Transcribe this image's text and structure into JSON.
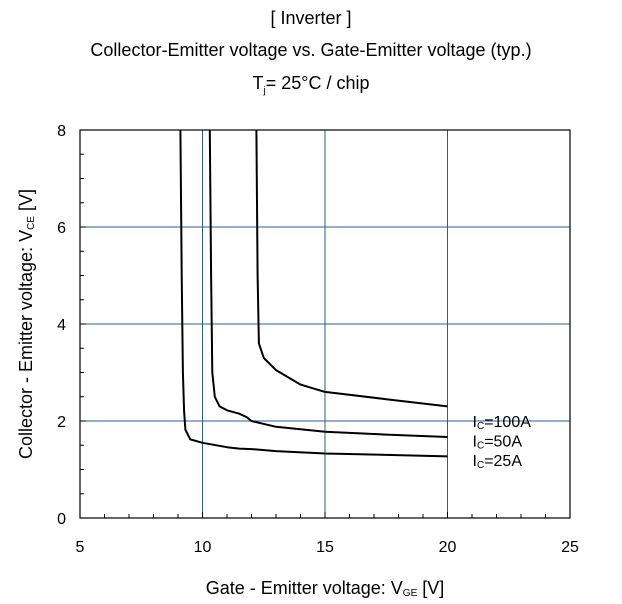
{
  "header": {
    "section": "[ Inverter ]",
    "title": "Collector-Emitter voltage  vs. Gate-Emitter voltage (typ.)",
    "condition_main": "T",
    "condition_sub": "j",
    "condition_rest": "= 25°C / chip"
  },
  "chart_data": {
    "type": "line",
    "xlabel_main": "Gate - Emitter voltage: V",
    "xlabel_sub": "GE",
    "xlabel_unit": " [V]",
    "ylabel_main": "Collector - Emitter voltage: V",
    "ylabel_sub": "CE",
    "ylabel_unit": " [V]",
    "xlim": [
      5,
      25
    ],
    "ylim": [
      0,
      8
    ],
    "x_ticks": [
      5,
      10,
      15,
      20,
      25
    ],
    "y_ticks": [
      0,
      2,
      4,
      6,
      8
    ],
    "grid_x": [
      10,
      15,
      20
    ],
    "grid_y": [
      2,
      4,
      6
    ],
    "grid_color": "#2f5c8f",
    "series": [
      {
        "name": "IC=25A",
        "label_main": "I",
        "label_sub": "C",
        "label_rest": "=25A",
        "x": [
          9.1,
          9.15,
          9.2,
          9.25,
          9.3,
          9.5,
          10,
          11,
          11.5,
          12,
          13,
          15,
          17.5,
          20
        ],
        "y": [
          8,
          5,
          3,
          2.2,
          1.82,
          1.62,
          1.55,
          1.46,
          1.43,
          1.42,
          1.38,
          1.33,
          1.3,
          1.27
        ]
      },
      {
        "name": "IC=50A",
        "label_main": "I",
        "label_sub": "C",
        "label_rest": "=50A",
        "x": [
          10.3,
          10.35,
          10.4,
          10.5,
          10.7,
          11,
          11.5,
          11.8,
          12,
          13,
          15,
          17.5,
          20
        ],
        "y": [
          8,
          5,
          3,
          2.5,
          2.3,
          2.22,
          2.15,
          2.08,
          2.0,
          1.88,
          1.78,
          1.72,
          1.67
        ]
      },
      {
        "name": "IC=100A",
        "label_main": "I",
        "label_sub": "C",
        "label_rest": "=100A",
        "x": [
          12.2,
          12.25,
          12.3,
          12.5,
          13,
          14,
          15,
          17.5,
          20
        ],
        "y": [
          8,
          5,
          3.6,
          3.3,
          3.05,
          2.75,
          2.6,
          2.45,
          2.3
        ]
      }
    ]
  }
}
